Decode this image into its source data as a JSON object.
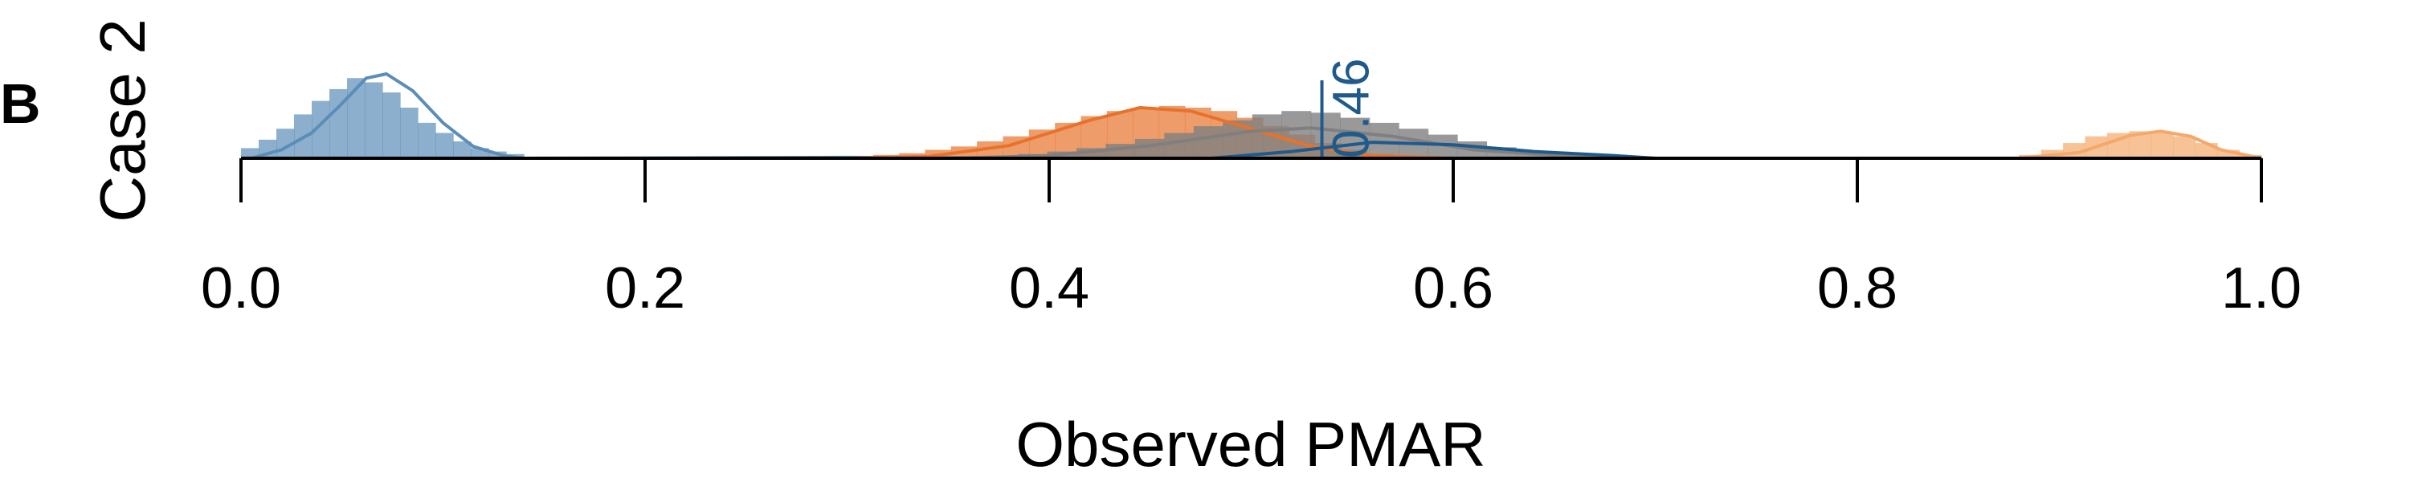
{
  "panel_label": "B",
  "chart_data": {
    "type": "area",
    "title": "",
    "row_label": "Case 2",
    "xlabel": "Observed PMAR",
    "ylabel": "",
    "xlim": [
      0.0,
      1.0
    ],
    "x_ticks": [
      "0.0",
      "0.2",
      "0.4",
      "0.6",
      "0.8",
      "1.0"
    ],
    "marker": {
      "x": 0.535,
      "label": "0.46",
      "color": "#1f5a8c"
    },
    "colors": {
      "blue": "#5b8db8",
      "orange": "#e8722c",
      "grey": "#7f7f7f",
      "darkblue": "#1f5a8c",
      "lightorange": "#f4a96a"
    },
    "series": [
      {
        "color": "#5b8db8",
        "hist_range": [
          0.0,
          0.14
        ],
        "hist_mode": 0.062,
        "hist_heights": [
          0.12,
          0.22,
          0.35,
          0.52,
          0.68,
          0.82,
          0.95,
          0.9,
          0.78,
          0.6,
          0.42,
          0.3,
          0.2,
          0.12,
          0.08,
          0.05
        ],
        "density": [
          [
            0.005,
            0.0
          ],
          [
            0.02,
            0.1
          ],
          [
            0.035,
            0.3
          ],
          [
            0.05,
            0.65
          ],
          [
            0.062,
            0.95
          ],
          [
            0.072,
            1.0
          ],
          [
            0.085,
            0.8
          ],
          [
            0.1,
            0.42
          ],
          [
            0.115,
            0.14
          ],
          [
            0.13,
            0.03
          ],
          [
            0.14,
            0.0
          ]
        ],
        "tail": [
          [
            0.14,
            0.0
          ],
          [
            0.3,
            0.01
          ],
          [
            0.42,
            0.0
          ]
        ]
      },
      {
        "color": "#e8722c",
        "hist_range": [
          0.3,
          0.57
        ],
        "hist_heights": [
          0.02,
          0.04,
          0.06,
          0.1,
          0.14,
          0.2,
          0.26,
          0.34,
          0.42,
          0.5,
          0.56,
          0.6,
          0.62,
          0.6,
          0.56,
          0.48,
          0.38,
          0.28,
          0.18,
          0.1,
          0.05
        ],
        "density": [
          [
            0.3,
            0.0
          ],
          [
            0.34,
            0.02
          ],
          [
            0.38,
            0.15
          ],
          [
            0.42,
            0.45
          ],
          [
            0.445,
            0.6
          ],
          [
            0.47,
            0.56
          ],
          [
            0.5,
            0.35
          ],
          [
            0.53,
            0.14
          ],
          [
            0.56,
            0.03
          ],
          [
            0.6,
            0.0
          ]
        ]
      },
      {
        "color": "#7f7f7f",
        "hist_range": [
          0.37,
          0.66
        ],
        "hist_heights": [
          0.03,
          0.05,
          0.08,
          0.12,
          0.17,
          0.23,
          0.3,
          0.38,
          0.45,
          0.52,
          0.56,
          0.54,
          0.48,
          0.42,
          0.35,
          0.28,
          0.2,
          0.13,
          0.08,
          0.04
        ],
        "density": [
          [
            0.35,
            0.0
          ],
          [
            0.4,
            0.03
          ],
          [
            0.45,
            0.15
          ],
          [
            0.5,
            0.32
          ],
          [
            0.53,
            0.36
          ],
          [
            0.57,
            0.26
          ],
          [
            0.61,
            0.1
          ],
          [
            0.66,
            0.02
          ],
          [
            0.7,
            0.0
          ]
        ]
      },
      {
        "color": "#1f5a8c",
        "density": [
          [
            0.48,
            0.0
          ],
          [
            0.52,
            0.08
          ],
          [
            0.56,
            0.19
          ],
          [
            0.6,
            0.16
          ],
          [
            0.64,
            0.08
          ],
          [
            0.68,
            0.03
          ],
          [
            0.7,
            0.0
          ]
        ]
      },
      {
        "color": "#f4a96a",
        "hist_range": [
          0.88,
          1.0
        ],
        "hist_heights": [
          0.04,
          0.1,
          0.18,
          0.26,
          0.3,
          0.32,
          0.3,
          0.26,
          0.18,
          0.1,
          0.04
        ],
        "density": [
          [
            0.88,
            0.0
          ],
          [
            0.91,
            0.07
          ],
          [
            0.935,
            0.27
          ],
          [
            0.95,
            0.32
          ],
          [
            0.965,
            0.26
          ],
          [
            0.98,
            0.1
          ],
          [
            1.0,
            0.0
          ]
        ]
      }
    ]
  }
}
